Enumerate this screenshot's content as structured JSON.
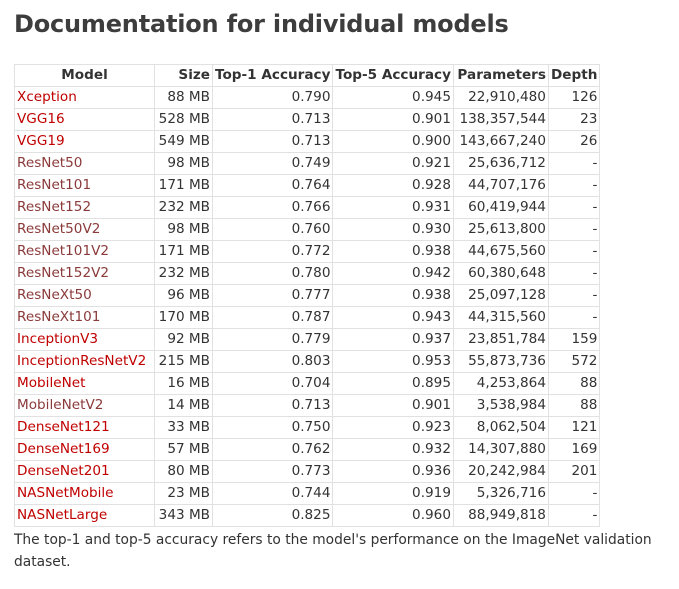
{
  "title": "Documentation for individual models",
  "table": {
    "headers": [
      "Model",
      "Size",
      "Top-1 Accuracy",
      "Top-5 Accuracy",
      "Parameters",
      "Depth"
    ],
    "rows": [
      {
        "model": "Xception",
        "size": "88 MB",
        "top1": "0.790",
        "top5": "0.945",
        "params": "22,910,480",
        "depth": "126",
        "visited": false
      },
      {
        "model": "VGG16",
        "size": "528 MB",
        "top1": "0.713",
        "top5": "0.901",
        "params": "138,357,544",
        "depth": "23",
        "visited": false
      },
      {
        "model": "VGG19",
        "size": "549 MB",
        "top1": "0.713",
        "top5": "0.900",
        "params": "143,667,240",
        "depth": "26",
        "visited": false
      },
      {
        "model": "ResNet50",
        "size": "98 MB",
        "top1": "0.749",
        "top5": "0.921",
        "params": "25,636,712",
        "depth": "-",
        "visited": true
      },
      {
        "model": "ResNet101",
        "size": "171 MB",
        "top1": "0.764",
        "top5": "0.928",
        "params": "44,707,176",
        "depth": "-",
        "visited": true
      },
      {
        "model": "ResNet152",
        "size": "232 MB",
        "top1": "0.766",
        "top5": "0.931",
        "params": "60,419,944",
        "depth": "-",
        "visited": true
      },
      {
        "model": "ResNet50V2",
        "size": "98 MB",
        "top1": "0.760",
        "top5": "0.930",
        "params": "25,613,800",
        "depth": "-",
        "visited": true
      },
      {
        "model": "ResNet101V2",
        "size": "171 MB",
        "top1": "0.772",
        "top5": "0.938",
        "params": "44,675,560",
        "depth": "-",
        "visited": true
      },
      {
        "model": "ResNet152V2",
        "size": "232 MB",
        "top1": "0.780",
        "top5": "0.942",
        "params": "60,380,648",
        "depth": "-",
        "visited": true
      },
      {
        "model": "ResNeXt50",
        "size": "96 MB",
        "top1": "0.777",
        "top5": "0.938",
        "params": "25,097,128",
        "depth": "-",
        "visited": true
      },
      {
        "model": "ResNeXt101",
        "size": "170 MB",
        "top1": "0.787",
        "top5": "0.943",
        "params": "44,315,560",
        "depth": "-",
        "visited": true
      },
      {
        "model": "InceptionV3",
        "size": "92 MB",
        "top1": "0.779",
        "top5": "0.937",
        "params": "23,851,784",
        "depth": "159",
        "visited": false
      },
      {
        "model": "InceptionResNetV2",
        "size": "215 MB",
        "top1": "0.803",
        "top5": "0.953",
        "params": "55,873,736",
        "depth": "572",
        "visited": false
      },
      {
        "model": "MobileNet",
        "size": "16 MB",
        "top1": "0.704",
        "top5": "0.895",
        "params": "4,253,864",
        "depth": "88",
        "visited": false
      },
      {
        "model": "MobileNetV2",
        "size": "14 MB",
        "top1": "0.713",
        "top5": "0.901",
        "params": "3,538,984",
        "depth": "88",
        "visited": true
      },
      {
        "model": "DenseNet121",
        "size": "33 MB",
        "top1": "0.750",
        "top5": "0.923",
        "params": "8,062,504",
        "depth": "121",
        "visited": false
      },
      {
        "model": "DenseNet169",
        "size": "57 MB",
        "top1": "0.762",
        "top5": "0.932",
        "params": "14,307,880",
        "depth": "169",
        "visited": false
      },
      {
        "model": "DenseNet201",
        "size": "80 MB",
        "top1": "0.773",
        "top5": "0.936",
        "params": "20,242,984",
        "depth": "201",
        "visited": false
      },
      {
        "model": "NASNetMobile",
        "size": "23 MB",
        "top1": "0.744",
        "top5": "0.919",
        "params": "5,326,716",
        "depth": "-",
        "visited": false
      },
      {
        "model": "NASNetLarge",
        "size": "343 MB",
        "top1": "0.825",
        "top5": "0.960",
        "params": "88,949,818",
        "depth": "-",
        "visited": false
      }
    ]
  },
  "caption": "The top-1 and top-5 accuracy refers to the model's performance on the ImageNet validation dataset.",
  "colors": {
    "link": "#c00000",
    "visited_link": "#8b3a3a",
    "text": "#333333",
    "border": "#e1e1e1"
  }
}
